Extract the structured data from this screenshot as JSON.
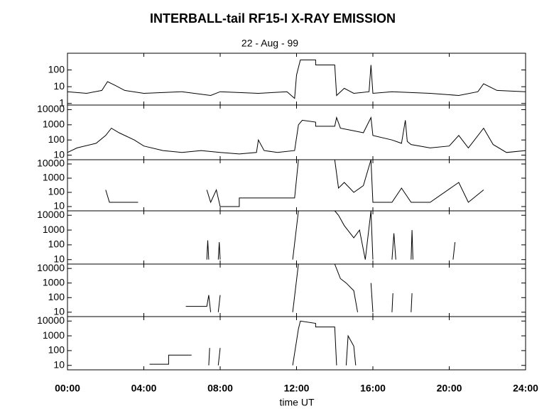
{
  "chart_data": [
    {
      "type": "line",
      "title": "INTERBALL-tail  RF15-I   X-RAY  EMISSION",
      "subtitle": "22 - Aug - 99",
      "color": "#000000",
      "log_y": true,
      "xlim": [
        0,
        24
      ],
      "ylim": [
        0.8,
        1000
      ],
      "yticks": [
        1,
        10,
        100
      ],
      "x": [
        0,
        1,
        1.8,
        2.1,
        2.5,
        3,
        4,
        6,
        7.5,
        8,
        10,
        11.5,
        11.9,
        12.0,
        12.2,
        13.0,
        13.0,
        14.0,
        14.1,
        14.5,
        15,
        15.8,
        15.9,
        16.0,
        17,
        19,
        20.5,
        21.5,
        21.8,
        22.5,
        24
      ],
      "values": [
        5,
        4,
        6,
        20,
        12,
        6,
        4,
        5,
        3,
        5,
        4,
        5,
        2,
        50,
        400,
        400,
        200,
        200,
        3,
        8,
        4,
        5,
        200,
        4,
        5,
        4,
        3,
        5,
        15,
        6,
        5
      ]
    },
    {
      "type": "line",
      "color": "#000000",
      "log_y": true,
      "xlim": [
        0,
        24
      ],
      "ylim": [
        5,
        20000
      ],
      "yticks": [
        10,
        100,
        1000,
        10000
      ],
      "x": [
        0,
        0.5,
        1.5,
        2,
        2.3,
        2.7,
        3.5,
        4,
        5,
        6,
        7,
        8,
        9,
        9.9,
        10,
        10.3,
        11,
        11.9,
        12.1,
        12.3,
        13,
        13,
        14,
        14.1,
        14.3,
        15,
        15.5,
        15.9,
        16,
        17,
        17.5,
        17.7,
        17.8,
        18,
        19,
        20,
        20.5,
        21,
        21.8,
        22.3,
        23,
        24
      ],
      "values": [
        15,
        30,
        60,
        200,
        600,
        300,
        100,
        40,
        20,
        15,
        20,
        15,
        12,
        15,
        100,
        20,
        15,
        20,
        1000,
        2000,
        1500,
        800,
        800,
        3000,
        600,
        400,
        300,
        3000,
        200,
        100,
        60,
        2000,
        80,
        50,
        30,
        40,
        200,
        30,
        600,
        50,
        15,
        20
      ]
    },
    {
      "type": "line",
      "color": "#000000",
      "log_y": true,
      "xlim": [
        0,
        24
      ],
      "ylim": [
        5,
        20000
      ],
      "yticks": [
        10,
        100,
        1000,
        10000
      ],
      "x": [
        2.0,
        2.2,
        3.7,
        3.7,
        7.3,
        7.5,
        7.8,
        8.0,
        9.0,
        9.0,
        10.0,
        11.5,
        11.9,
        12.1,
        12.2,
        14.0,
        14.2,
        14.5,
        15,
        15.5,
        15.9,
        16.0,
        17,
        17.5,
        18,
        19,
        20.5,
        21,
        21.8,
        22
      ],
      "values": [
        150,
        20,
        20,
        null,
        150,
        20,
        150,
        10,
        10,
        40,
        40,
        40,
        40,
        20000,
        null,
        20000,
        200,
        500,
        100,
        300,
        20000,
        20,
        20,
        200,
        20,
        20,
        500,
        20,
        150,
        null
      ]
    },
    {
      "type": "line",
      "color": "#000000",
      "log_y": true,
      "xlim": [
        0,
        24
      ],
      "ylim": [
        5,
        20000
      ],
      "yticks": [
        10,
        100,
        1000,
        10000
      ],
      "x": [
        7.3,
        7.35,
        7.4,
        7.5,
        7.9,
        7.95,
        8.0,
        8.1,
        11.8,
        12.1,
        12.2,
        14.0,
        14.2,
        14.5,
        15,
        15.3,
        15.6,
        15.9,
        16,
        16.1,
        17,
        17.1,
        17.2,
        17.3,
        18,
        18.05,
        18.1,
        18.2,
        20.2,
        20.3,
        20.4
      ],
      "values": [
        10,
        200,
        10,
        null,
        10,
        150,
        10,
        null,
        10,
        20000,
        null,
        20000,
        10000,
        2000,
        300,
        1000,
        10,
        20000,
        10,
        null,
        10,
        600,
        10,
        null,
        10,
        1000,
        10,
        null,
        10,
        150,
        null
      ]
    },
    {
      "type": "line",
      "color": "#000000",
      "log_y": true,
      "xlim": [
        0,
        24
      ],
      "ylim": [
        5,
        20000
      ],
      "yticks": [
        10,
        100,
        1000,
        10000
      ],
      "x": [
        6.2,
        7.3,
        7.4,
        7.5,
        7.6,
        7.9,
        8.0,
        8.1,
        11.8,
        12.1,
        12.2,
        14.0,
        14.3,
        14.6,
        15,
        15.2,
        15.3,
        15.9,
        16,
        16.1,
        17.0,
        17.05,
        17.1,
        18,
        18.05,
        18.1
      ],
      "values": [
        25,
        25,
        150,
        10,
        null,
        10,
        150,
        null,
        10,
        20000,
        null,
        20000,
        2000,
        1000,
        300,
        10,
        null,
        1000,
        10,
        null,
        10,
        200,
        null,
        10,
        200,
        null
      ]
    },
    {
      "type": "line",
      "color": "#000000",
      "log_y": true,
      "xlim": [
        0,
        24
      ],
      "ylim": [
        5,
        20000
      ],
      "yticks": [
        10,
        100,
        1000,
        10000
      ],
      "x_label": "time UT",
      "xticks": [
        {
          "value": 0,
          "label": "00:00"
        },
        {
          "value": 4,
          "label": "04:00"
        },
        {
          "value": 8,
          "label": "08:00"
        },
        {
          "value": 12,
          "label": "12:00"
        },
        {
          "value": 16,
          "label": "16:00"
        },
        {
          "value": 20,
          "label": "20:00"
        },
        {
          "value": 24,
          "label": "24:00"
        }
      ],
      "x": [
        4.3,
        5.3,
        5.3,
        6.5,
        6.5,
        7.4,
        7.45,
        7.5,
        7.9,
        8.0,
        8.1,
        11.8,
        12.1,
        12.2,
        13.0,
        13.0,
        14,
        14.1,
        14.2,
        14.6,
        14.7,
        15,
        15.1,
        15.2
      ],
      "values": [
        12,
        12,
        50,
        50,
        null,
        10,
        150,
        null,
        10,
        150,
        null,
        10,
        3000,
        10000,
        7000,
        4000,
        4000,
        10,
        null,
        10,
        1000,
        200,
        10,
        null
      ]
    }
  ]
}
